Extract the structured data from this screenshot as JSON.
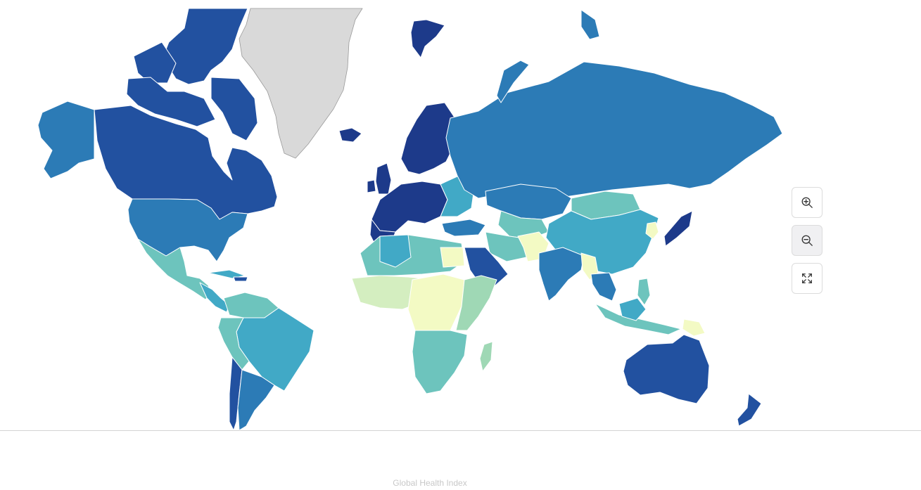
{
  "map": {
    "caption": "Global Health Index",
    "legend_visible": false,
    "palette": {
      "darkest": "#1d3a8a",
      "dark": "#2251a0",
      "mid_blue": "#2c7bb6",
      "teal": "#41a9c6",
      "light_teal": "#6dc4bd",
      "green": "#9fd8b5",
      "light_green": "#d4ee c0",
      "pale_yellow": "#f3fac4",
      "no_data": "#d9d9d9"
    }
  },
  "controls": {
    "zoom_in_icon": "zoom-in-icon",
    "zoom_out_icon": "zoom-out-icon",
    "fullscreen_icon": "fullscreen-icon"
  }
}
